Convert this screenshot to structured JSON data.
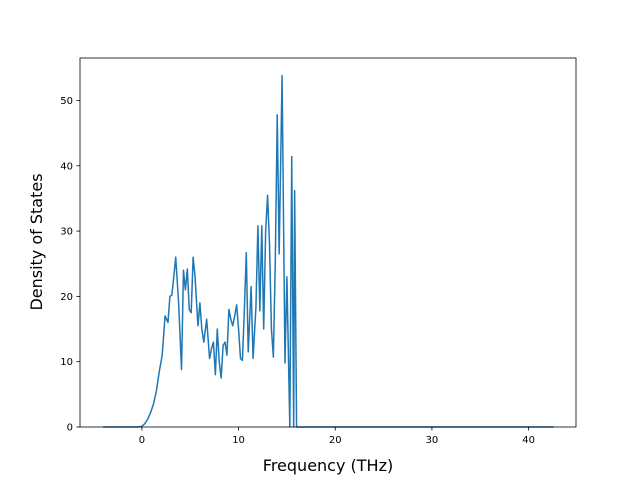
{
  "chart_data": {
    "type": "line",
    "title": "",
    "xlabel": "Frequency (THz)",
    "ylabel": "Density of States",
    "xlim": [
      -6.4,
      44.9
    ],
    "ylim": [
      0,
      56.5
    ],
    "xticks": [
      0,
      10,
      20,
      30,
      40
    ],
    "yticks": [
      0,
      10,
      20,
      30,
      40,
      50
    ],
    "grid": false,
    "legend": "none",
    "series": [
      {
        "color": "#1f77b4",
        "x": [
          -4.0,
          -2.0,
          -0.5,
          0.0,
          0.3,
          0.6,
          0.9,
          1.2,
          1.5,
          1.8,
          2.1,
          2.4,
          2.7,
          2.9,
          3.1,
          3.3,
          3.5,
          3.8,
          4.1,
          4.3,
          4.5,
          4.7,
          4.9,
          5.1,
          5.3,
          5.5,
          5.8,
          6.0,
          6.2,
          6.4,
          6.7,
          7.0,
          7.2,
          7.4,
          7.6,
          7.8,
          8.0,
          8.2,
          8.4,
          8.6,
          8.8,
          9.0,
          9.2,
          9.4,
          9.6,
          9.8,
          10.0,
          10.2,
          10.4,
          10.6,
          10.8,
          11.0,
          11.3,
          11.5,
          11.8,
          12.0,
          12.2,
          12.4,
          12.6,
          12.8,
          13.0,
          13.2,
          13.4,
          13.6,
          13.8,
          14.0,
          14.2,
          14.5,
          14.8,
          15.0,
          15.3,
          15.5,
          15.7,
          15.8,
          16.0,
          16.2,
          16.4,
          16.6,
          16.8,
          17.0,
          17.2,
          17.4,
          17.6,
          17.8,
          18.0,
          20.0,
          30.0,
          42.6
        ],
        "y": [
          0,
          0,
          0,
          0.1,
          0.5,
          1.2,
          2.2,
          3.5,
          5.5,
          8.5,
          11.0,
          17.0,
          16.0,
          20.0,
          20.2,
          23.0,
          26.0,
          19.0,
          8.8,
          24.0,
          21.0,
          24.2,
          18.0,
          17.5,
          26.0,
          23.0,
          15.5,
          19.0,
          15.0,
          13.0,
          16.5,
          10.5,
          12.0,
          13.0,
          8.0,
          15.0,
          10.0,
          7.5,
          12.5,
          13.0,
          11.0,
          18.0,
          16.5,
          15.5,
          17.0,
          18.7,
          15.0,
          10.5,
          10.2,
          18.0,
          26.7,
          11.5,
          21.5,
          10.5,
          18.5,
          30.8,
          17.8,
          30.8,
          15.0,
          30.0,
          35.5,
          28.0,
          15.0,
          10.7,
          25.5,
          47.8,
          26.5,
          53.8,
          9.8,
          23.0,
          0,
          41.4,
          0,
          36.2,
          0,
          0,
          0,
          0,
          0,
          0,
          0,
          0,
          0,
          0,
          0,
          0,
          0,
          0
        ]
      }
    ]
  }
}
